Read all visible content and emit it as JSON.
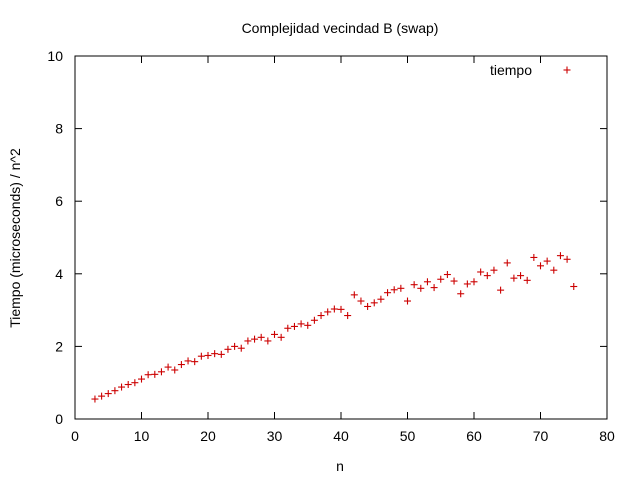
{
  "chart_data": {
    "type": "scatter",
    "title": "Complejidad vecindad B (swap)",
    "xlabel": "n",
    "ylabel": "Tiempo (microseconds) / n^2",
    "xlim": [
      0,
      80
    ],
    "ylim": [
      0,
      10
    ],
    "xticks": [
      0,
      10,
      20,
      30,
      40,
      50,
      60,
      70,
      80
    ],
    "yticks": [
      0,
      2,
      4,
      6,
      8,
      10
    ],
    "grid": false,
    "legend_position": "top-right",
    "series": [
      {
        "name": "tiempo",
        "color": "#cc0000",
        "marker": "plus",
        "x": [
          3,
          4,
          5,
          6,
          7,
          8,
          9,
          10,
          11,
          12,
          13,
          14,
          15,
          16,
          17,
          18,
          19,
          20,
          21,
          22,
          23,
          24,
          25,
          26,
          27,
          28,
          29,
          30,
          31,
          32,
          33,
          34,
          35,
          36,
          37,
          38,
          39,
          40,
          41,
          42,
          43,
          44,
          45,
          46,
          47,
          48,
          49,
          50,
          51,
          52,
          53,
          54,
          55,
          56,
          57,
          58,
          59,
          60,
          61,
          62,
          63,
          64,
          65,
          66,
          67,
          68,
          69,
          70,
          71,
          72,
          73,
          74,
          75
        ],
        "y": [
          0.55,
          0.63,
          0.7,
          0.78,
          0.88,
          0.95,
          1.0,
          1.1,
          1.22,
          1.23,
          1.3,
          1.43,
          1.35,
          1.5,
          1.6,
          1.58,
          1.73,
          1.75,
          1.8,
          1.78,
          1.92,
          2.0,
          1.95,
          2.15,
          2.2,
          2.25,
          2.15,
          2.33,
          2.25,
          2.5,
          2.55,
          2.62,
          2.58,
          2.72,
          2.85,
          2.95,
          3.03,
          3.02,
          2.85,
          3.42,
          3.25,
          3.1,
          3.2,
          3.3,
          3.48,
          3.56,
          3.6,
          3.25,
          3.7,
          3.6,
          3.78,
          3.62,
          3.85,
          3.98,
          3.8,
          3.45,
          3.72,
          3.78,
          4.05,
          3.95,
          4.1,
          3.55,
          4.3,
          3.88,
          3.95,
          3.82,
          4.45,
          4.22,
          4.35,
          4.1,
          4.5,
          4.4,
          3.65
        ]
      }
    ]
  }
}
